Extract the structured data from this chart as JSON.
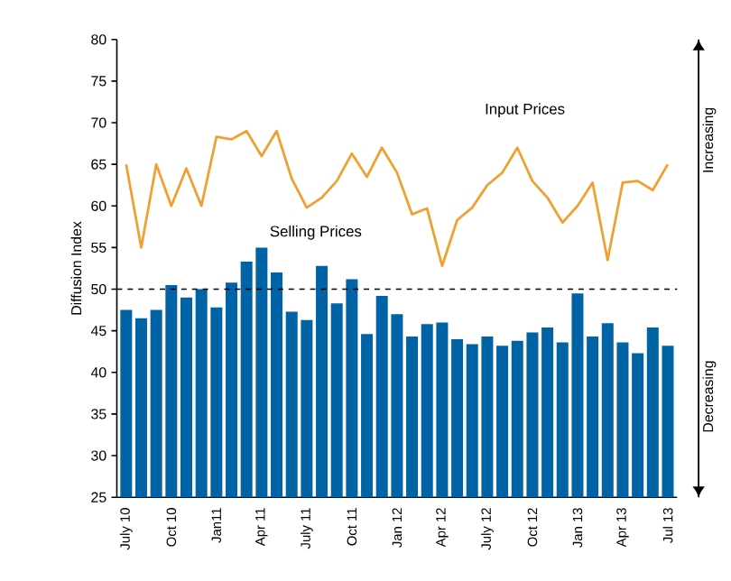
{
  "chart_data": {
    "type": "bar",
    "ylabel": "Diffusion Index",
    "categories": [
      "July 10",
      null,
      null,
      "Oct 10",
      null,
      null,
      "Jan11",
      null,
      null,
      "Apr 11",
      null,
      null,
      "July 11",
      null,
      null,
      "Oct 11",
      null,
      null,
      "Jan 12",
      null,
      null,
      "Apr 12",
      null,
      null,
      "July 12",
      null,
      null,
      "Oct 12",
      null,
      null,
      "Jan 13",
      null,
      null,
      "Apr 13",
      null,
      null,
      "Jul 13"
    ],
    "series": [
      {
        "name": "Selling Prices",
        "color": "#0063a5",
        "values": [
          47.5,
          46.5,
          47.5,
          50.5,
          49,
          50,
          47.8,
          50.8,
          53.3,
          55,
          52,
          47.3,
          46.3,
          52.8,
          48.3,
          51.2,
          44.6,
          49.2,
          47,
          44.3,
          45.8,
          46,
          44,
          43.4,
          44.3,
          43.2,
          43.8,
          44.8,
          45.4,
          43.6,
          49.5,
          44.3,
          45.9,
          43.6,
          42.3,
          45.4,
          43.2
        ]
      },
      {
        "name": "Input Prices",
        "type": "line",
        "color": "#f0a030",
        "values": [
          65,
          55,
          65,
          60,
          64.5,
          60,
          68.3,
          68,
          69,
          66,
          69,
          63.3,
          59.8,
          61,
          63,
          66.3,
          63.5,
          67,
          64,
          59,
          59.7,
          52.8,
          58.3,
          59.8,
          62.5,
          64,
          67,
          63,
          61,
          58,
          60,
          62.8,
          53.5,
          62.8,
          63,
          61.9,
          65
        ]
      }
    ],
    "ylim": [
      25,
      80
    ],
    "yticks": [
      25,
      30,
      35,
      40,
      45,
      50,
      55,
      60,
      65,
      70,
      75,
      80
    ],
    "ref_lines": [
      {
        "axis": "y",
        "value": 50,
        "line_style": "dashed",
        "color": "#000000"
      }
    ],
    "annotations": [
      "Increasing",
      "Decreasing"
    ],
    "grid": false,
    "legend": false,
    "marker": "none",
    "line_style": "solid"
  }
}
